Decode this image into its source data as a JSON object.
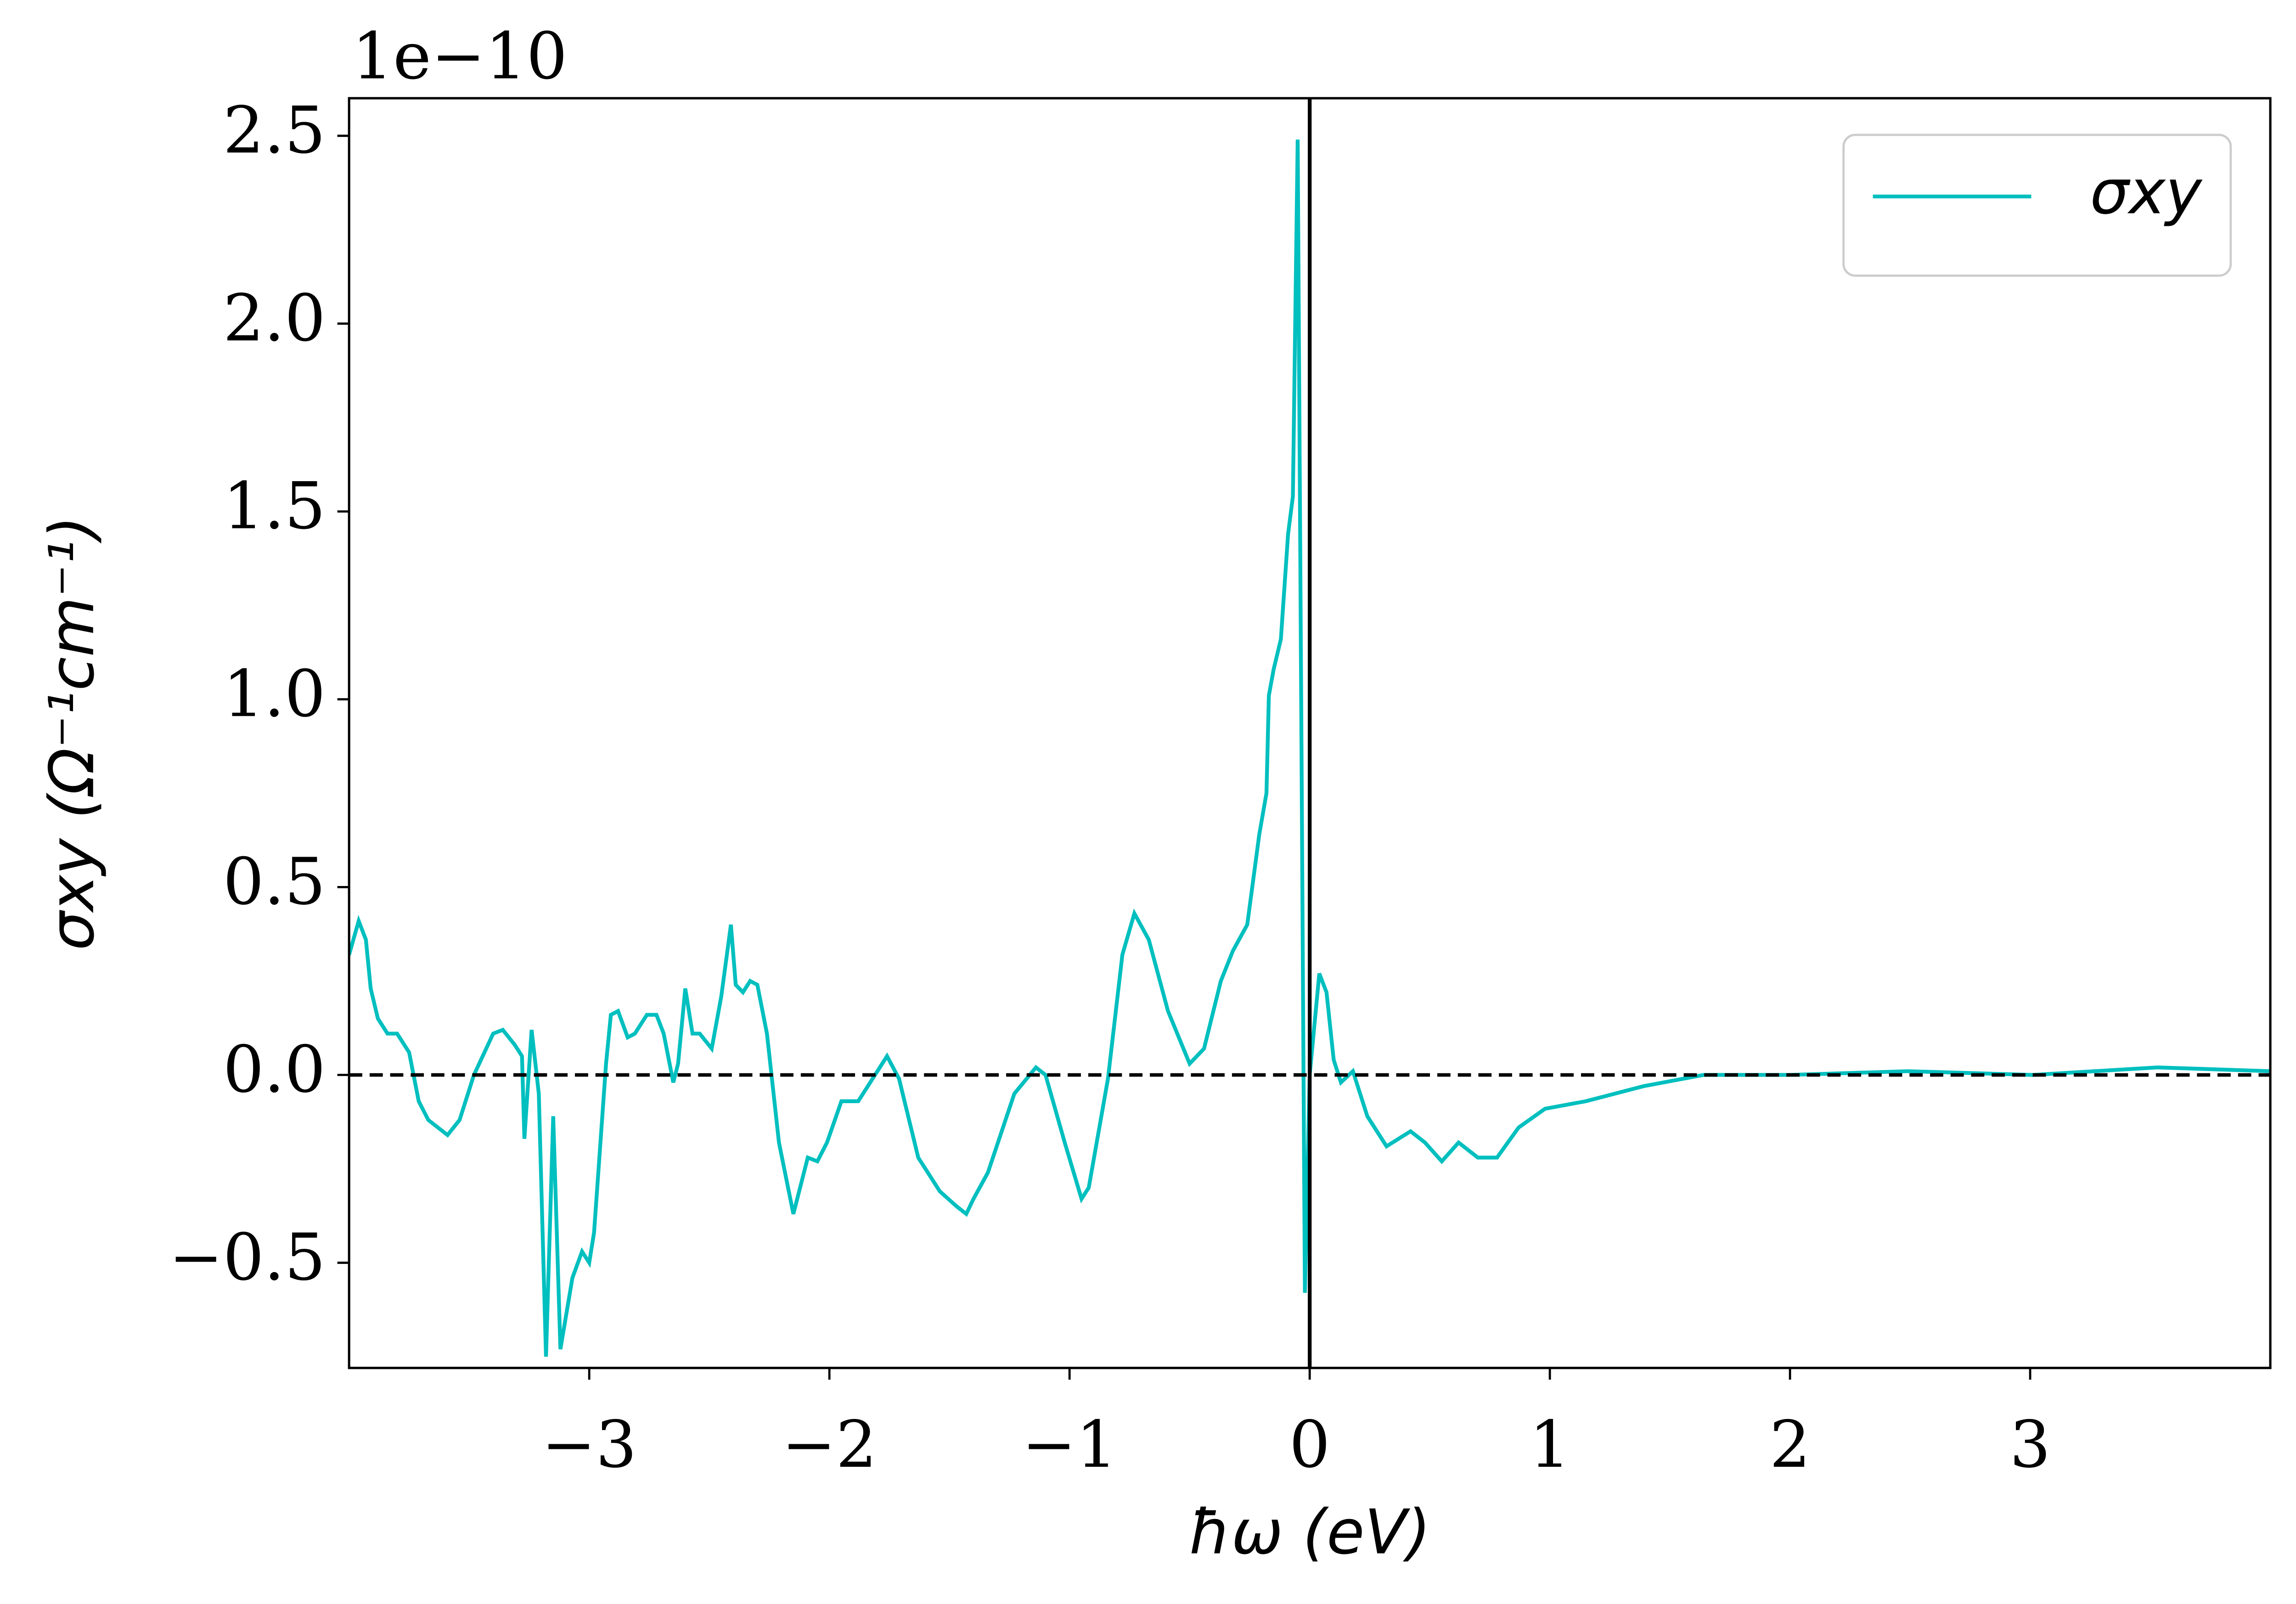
{
  "chart_data": {
    "type": "line",
    "offset_label": "1e−10",
    "xlabel": "ħω (eV)",
    "ylabel": "σxy (Ω⁻¹cm⁻¹)",
    "xlim": [
      -4.0,
      4.0
    ],
    "ylim": [
      -0.78,
      2.6
    ],
    "xticks": [
      {
        "value": -3,
        "label": "−3"
      },
      {
        "value": -2,
        "label": "−2"
      },
      {
        "value": -1,
        "label": "−1"
      },
      0,
      1,
      2,
      3
    ],
    "yticks": [
      {
        "value": -0.5,
        "label": "−0.5"
      },
      {
        "value": 0,
        "label": "0.0"
      },
      0.5,
      {
        "value": 1,
        "label": "1.0"
      },
      1.5,
      {
        "value": 2,
        "label": "2.0"
      },
      2.5
    ],
    "hlines": [
      0
    ],
    "vlines": [
      0
    ],
    "legend": "upper right",
    "series": [
      {
        "name": "σxy",
        "color": "#00bfbf",
        "x": [
          -4.0,
          -3.96,
          -3.93,
          -3.91,
          -3.88,
          -3.84,
          -3.8,
          -3.75,
          -3.71,
          -3.67,
          -3.59,
          -3.54,
          -3.48,
          -3.4,
          -3.36,
          -3.31,
          -3.28,
          -3.27,
          -3.24,
          -3.21,
          -3.18,
          -3.15,
          -3.12,
          -3.07,
          -3.03,
          -3.0,
          -2.98,
          -2.93,
          -2.91,
          -2.88,
          -2.84,
          -2.81,
          -2.76,
          -2.72,
          -2.69,
          -2.65,
          -2.63,
          -2.6,
          -2.57,
          -2.54,
          -2.49,
          -2.45,
          -2.41,
          -2.39,
          -2.36,
          -2.33,
          -2.3,
          -2.26,
          -2.21,
          -2.15,
          -2.09,
          -2.05,
          -2.01,
          -1.95,
          -1.88,
          -1.82,
          -1.76,
          -1.71,
          -1.63,
          -1.54,
          -1.47,
          -1.43,
          -1.4,
          -1.34,
          -1.23,
          -1.14,
          -1.1,
          -1.02,
          -0.95,
          -0.92,
          -0.84,
          -0.78,
          -0.73,
          -0.67,
          -0.59,
          -0.5,
          -0.44,
          -0.37,
          -0.32,
          -0.26,
          -0.21,
          -0.18,
          -0.17,
          -0.15,
          -0.12,
          -0.09,
          -0.07,
          -0.05,
          -0.02,
          0.0,
          0.04,
          0.07,
          0.1,
          0.13,
          0.18,
          0.24,
          0.32,
          0.42,
          0.48,
          0.55,
          0.62,
          0.7,
          0.78,
          0.87,
          0.98,
          1.15,
          1.39,
          1.64,
          2.0,
          2.49,
          3.01,
          3.53,
          4.0
        ],
        "values": [
          0.32,
          0.41,
          0.36,
          0.23,
          0.15,
          0.11,
          0.11,
          0.06,
          -0.07,
          -0.12,
          -0.16,
          -0.12,
          0.0,
          0.11,
          0.12,
          0.08,
          0.05,
          -0.17,
          0.12,
          -0.05,
          -0.75,
          -0.11,
          -0.73,
          -0.54,
          -0.47,
          -0.5,
          -0.42,
          0.03,
          0.16,
          0.17,
          0.1,
          0.11,
          0.16,
          0.16,
          0.11,
          -0.02,
          0.03,
          0.23,
          0.11,
          0.11,
          0.07,
          0.21,
          0.4,
          0.24,
          0.22,
          0.25,
          0.24,
          0.11,
          -0.18,
          -0.37,
          -0.22,
          -0.23,
          -0.18,
          -0.07,
          -0.07,
          -0.01,
          0.05,
          -0.01,
          -0.22,
          -0.31,
          -0.35,
          -0.37,
          -0.33,
          -0.26,
          -0.05,
          0.02,
          0.0,
          -0.18,
          -0.33,
          -0.3,
          -0.01,
          0.32,
          0.43,
          0.36,
          0.17,
          0.03,
          0.07,
          0.25,
          0.33,
          0.4,
          0.64,
          0.75,
          1.01,
          1.08,
          1.16,
          1.44,
          1.54,
          2.49,
          -0.58,
          0.0,
          0.27,
          0.22,
          0.04,
          -0.02,
          0.01,
          -0.11,
          -0.19,
          -0.15,
          -0.18,
          -0.23,
          -0.18,
          -0.22,
          -0.22,
          -0.14,
          -0.09,
          -0.07,
          -0.03,
          0.0,
          0.0,
          0.01,
          0.0,
          0.02,
          0.01
        ]
      }
    ]
  }
}
